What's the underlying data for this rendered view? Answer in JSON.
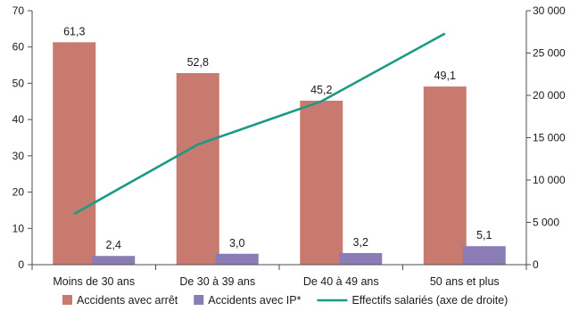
{
  "chart_data": {
    "type": "bar",
    "categories": [
      "Moins de 30 ans",
      "De 30 à 39 ans",
      "De 40 à 49 ans",
      "50 ans et plus"
    ],
    "series": [
      {
        "name": "Accidents avec arrêt",
        "type": "bar",
        "axis": "left",
        "color": "#c87a6e",
        "values": [
          61.3,
          52.8,
          45.2,
          49.1
        ],
        "labels": [
          "61,3",
          "52,8",
          "45,2",
          "49,1"
        ]
      },
      {
        "name": "Accidents avec IP*",
        "type": "bar",
        "axis": "left",
        "color": "#8a7db5",
        "values": [
          2.4,
          3.0,
          3.2,
          5.1
        ],
        "labels": [
          "2,4",
          "3,0",
          "3,2",
          "5,1"
        ]
      },
      {
        "name": "Effectifs salariés (axe de droite)",
        "type": "line",
        "axis": "right",
        "color": "#1a9a84",
        "values": [
          6000,
          14200,
          19300,
          27300
        ]
      }
    ],
    "y_left": {
      "ylim": [
        0,
        70
      ],
      "ticks": [
        0,
        10,
        20,
        30,
        40,
        50,
        60,
        70
      ],
      "tick_labels": [
        "0",
        "10",
        "20",
        "30",
        "40",
        "50",
        "60",
        "70"
      ]
    },
    "y_right": {
      "ylim": [
        0,
        30000
      ],
      "ticks": [
        0,
        5000,
        10000,
        15000,
        20000,
        25000,
        30000
      ],
      "tick_labels": [
        "0",
        "5 000",
        "10 000",
        "15 000",
        "20 000",
        "25 000",
        "30 000"
      ]
    },
    "grid": false,
    "legend": "bottom"
  }
}
